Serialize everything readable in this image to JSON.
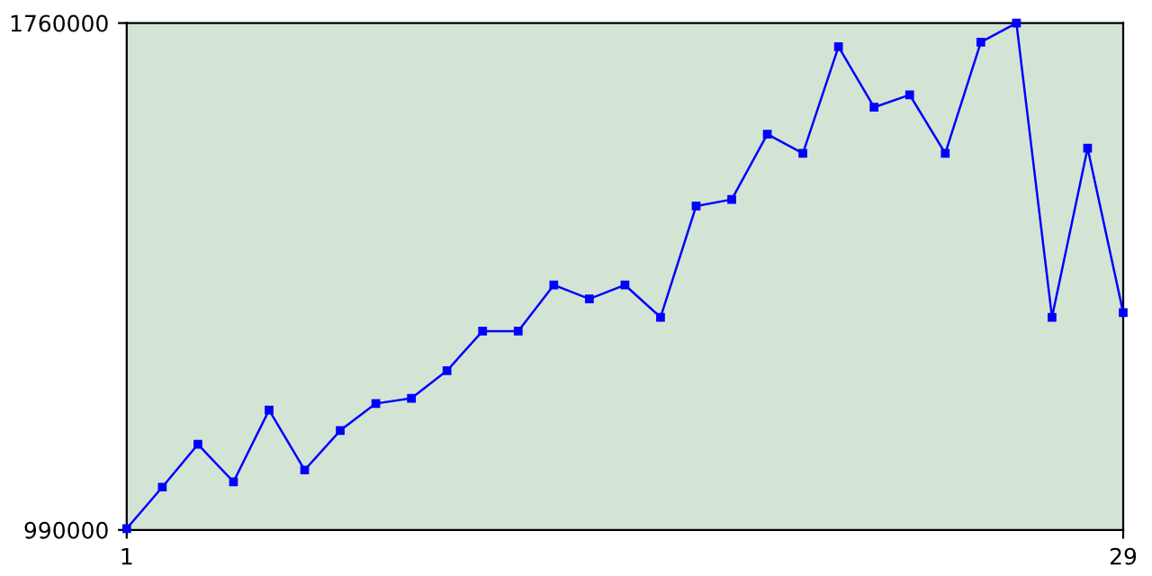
{
  "chart_data": {
    "type": "line",
    "x": [
      1,
      2,
      3,
      4,
      5,
      6,
      7,
      8,
      9,
      10,
      11,
      12,
      13,
      14,
      15,
      16,
      17,
      18,
      19,
      20,
      21,
      22,
      23,
      24,
      25,
      26,
      27,
      28,
      29
    ],
    "series": [
      {
        "color": "#0000ff",
        "values": [
          992000,
          1055000,
          1120000,
          1063000,
          1172000,
          1081000,
          1141000,
          1182000,
          1190000,
          1232000,
          1292000,
          1292000,
          1362000,
          1341000,
          1362000,
          1313000,
          1482000,
          1492000,
          1591000,
          1562000,
          1724000,
          1632000,
          1651000,
          1562000,
          1731000,
          1760000,
          1313000,
          1570000,
          1320000
        ]
      }
    ],
    "xlim": [
      1,
      29
    ],
    "ylim": [
      990000,
      1760000
    ],
    "xticks": [
      1,
      29
    ],
    "yticks": [
      990000,
      1760000
    ],
    "grid": false,
    "marker": "square",
    "line_style": "solid",
    "legend": false
  }
}
